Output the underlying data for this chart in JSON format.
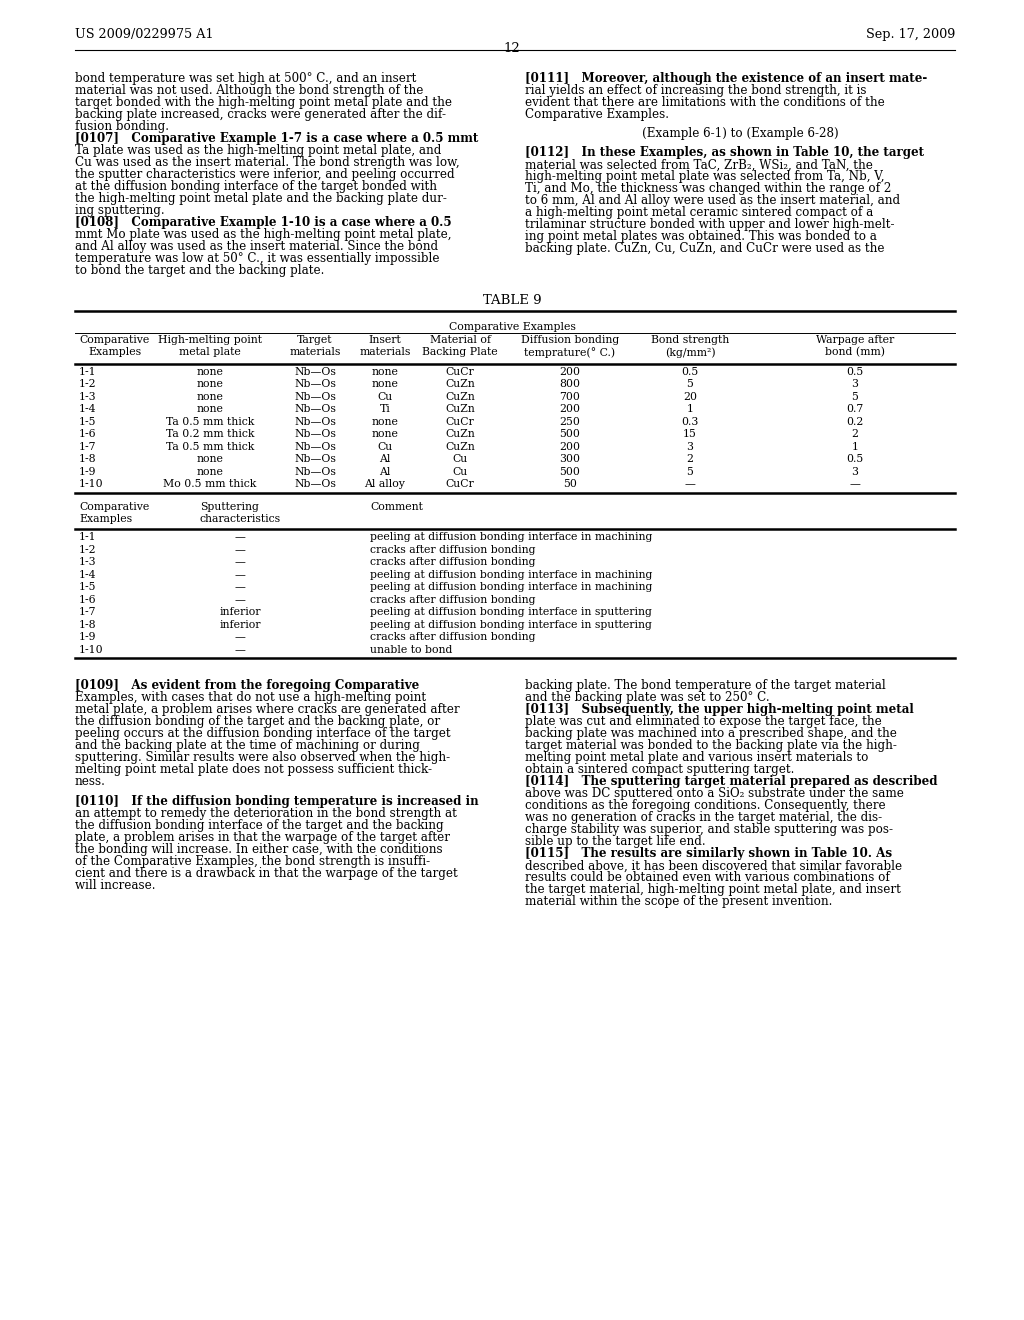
{
  "page_header_left": "US 2009/0229975 A1",
  "page_header_right": "Sep. 17, 2009",
  "page_number": "12",
  "background_color": "#ffffff",
  "left_col_top": [
    "bond temperature was set high at 500° C., and an insert",
    "material was not used. Although the bond strength of the",
    "target bonded with the high-melting point metal plate and the",
    "backing plate increased, cracks were generated after the dif-",
    "fusion bonding.",
    "[0107]   Comparative Example 1-7 is a case where a 0.5 mmt",
    "Ta plate was used as the high-melting point metal plate, and",
    "Cu was used as the insert material. The bond strength was low,",
    "the sputter characteristics were inferior, and peeling occurred",
    "at the diffusion bonding interface of the target bonded with",
    "the high-melting point metal plate and the backing plate dur-",
    "ing sputtering.",
    "[0108]   Comparative Example 1-10 is a case where a 0.5",
    "mmt Mo plate was used as the high-melting point metal plate,",
    "and Al alloy was used as the insert material. Since the bond",
    "temperature was low at 50° C., it was essentially impossible",
    "to bond the target and the backing plate."
  ],
  "left_col_top_bold": [
    false,
    false,
    false,
    false,
    false,
    true,
    false,
    false,
    false,
    false,
    false,
    false,
    true,
    false,
    false,
    false,
    false
  ],
  "right_col_top": [
    "[0111]   Moreover, although the existence of an insert mate-",
    "rial yields an effect of increasing the bond strength, it is",
    "evident that there are limitations with the conditions of the",
    "Comparative Examples.",
    "",
    "(Example 6-1) to (Example 6-28)",
    "",
    "[0112]   In these Examples, as shown in Table 10, the target",
    "material was selected from TaC, ZrB₂, WSi₂, and TaN, the",
    "high-melting point metal plate was selected from Ta, Nb, V,",
    "Ti, and Mo, the thickness was changed within the range of 2",
    "to 6 mm, Al and Al alloy were used as the insert material, and",
    "a high-melting point metal ceramic sintered compact of a",
    "trilaminar structure bonded with upper and lower high-melt-",
    "ing point metal plates was obtained. This was bonded to a",
    "backing plate. CuZn, Cu, CuZn, and CuCr were used as the"
  ],
  "right_col_top_bold": [
    true,
    false,
    false,
    false,
    false,
    false,
    false,
    true,
    false,
    false,
    false,
    false,
    false,
    false,
    false,
    false
  ],
  "right_col_top_center": [
    false,
    false,
    false,
    false,
    false,
    true,
    false,
    false,
    false,
    false,
    false,
    false,
    false,
    false,
    false,
    false
  ],
  "table_title": "TABLE 9",
  "table1_col_headers": [
    "Comparative\nExamples",
    "High-melting point\nmetal plate",
    "Target\nmaterials",
    "Insert\nmaterials",
    "Material of\nBacking Plate",
    "Diffusion bonding\ntemprature(° C.)",
    "Bond strength\n(kg/mm²)",
    "Warpage after\nbond (mm)"
  ],
  "table1_rows": [
    [
      "1-1",
      "none",
      "Nb—Os",
      "none",
      "CuCr",
      "200",
      "0.5",
      "0.5"
    ],
    [
      "1-2",
      "none",
      "Nb—Os",
      "none",
      "CuZn",
      "800",
      "5",
      "3"
    ],
    [
      "1-3",
      "none",
      "Nb—Os",
      "Cu",
      "CuZn",
      "700",
      "20",
      "5"
    ],
    [
      "1-4",
      "none",
      "Nb—Os",
      "Ti",
      "CuZn",
      "200",
      "1",
      "0.7"
    ],
    [
      "1-5",
      "Ta 0.5 mm thick",
      "Nb—Os",
      "none",
      "CuCr",
      "250",
      "0.3",
      "0.2"
    ],
    [
      "1-6",
      "Ta 0.2 mm thick",
      "Nb—Os",
      "none",
      "CuZn",
      "500",
      "15",
      "2"
    ],
    [
      "1-7",
      "Ta 0.5 mm thick",
      "Nb—Os",
      "Cu",
      "CuZn",
      "200",
      "3",
      "1"
    ],
    [
      "1-8",
      "none",
      "Nb—Os",
      "Al",
      "Cu",
      "300",
      "2",
      "0.5"
    ],
    [
      "1-9",
      "none",
      "Nb—Os",
      "Al",
      "Cu",
      "500",
      "5",
      "3"
    ],
    [
      "1-10",
      "Mo 0.5 mm thick",
      "Nb—Os",
      "Al alloy",
      "CuCr",
      "50",
      "—",
      "—"
    ]
  ],
  "table2_col_headers": [
    "Comparative\nExamples",
    "Sputtering\ncharacteristics",
    "Comment"
  ],
  "table2_rows": [
    [
      "1-1",
      "—",
      "peeling at diffusion bonding interface in machining"
    ],
    [
      "1-2",
      "—",
      "cracks after diffusion bonding"
    ],
    [
      "1-3",
      "—",
      "cracks after diffusion bonding"
    ],
    [
      "1-4",
      "—",
      "peeling at diffusion bonding interface in machining"
    ],
    [
      "1-5",
      "—",
      "peeling at diffusion bonding interface in machining"
    ],
    [
      "1-6",
      "—",
      "cracks after diffusion bonding"
    ],
    [
      "1-7",
      "inferior",
      "peeling at diffusion bonding interface in sputtering"
    ],
    [
      "1-8",
      "inferior",
      "peeling at diffusion bonding interface in sputtering"
    ],
    [
      "1-9",
      "—",
      "cracks after diffusion bonding"
    ],
    [
      "1-10",
      "—",
      "unable to bond"
    ]
  ],
  "bottom_left": [
    "[0109]   As evident from the foregoing Comparative",
    "Examples, with cases that do not use a high-melting point",
    "metal plate, a problem arises where cracks are generated after",
    "the diffusion bonding of the target and the backing plate, or",
    "peeling occurs at the diffusion bonding interface of the target",
    "and the backing plate at the time of machining or during",
    "sputtering. Similar results were also observed when the high-",
    "melting point metal plate does not possess sufficient thick-",
    "ness.",
    "",
    "[0110]   If the diffusion bonding temperature is increased in",
    "an attempt to remedy the deterioration in the bond strength at",
    "the diffusion bonding interface of the target and the backing",
    "plate, a problem arises in that the warpage of the target after",
    "the bonding will increase. In either case, with the conditions",
    "of the Comparative Examples, the bond strength is insuffi-",
    "cient and there is a drawback in that the warpage of the target",
    "will increase."
  ],
  "bottom_left_bold": [
    true,
    false,
    false,
    false,
    false,
    false,
    false,
    false,
    false,
    false,
    true,
    false,
    false,
    false,
    false,
    false,
    false,
    false
  ],
  "bottom_right": [
    "backing plate. The bond temperature of the target material",
    "and the backing plate was set to 250° C.",
    "[0113]   Subsequently, the upper high-melting point metal",
    "plate was cut and eliminated to expose the target face, the",
    "backing plate was machined into a prescribed shape, and the",
    "target material was bonded to the backing plate via the high-",
    "melting point metal plate and various insert materials to",
    "obtain a sintered compact sputtering target.",
    "[0114]   The sputtering target material prepared as described",
    "above was DC sputtered onto a SiO₂ substrate under the same",
    "conditions as the foregoing conditions. Consequently, there",
    "was no generation of cracks in the target material, the dis-",
    "charge stability was superior, and stable sputtering was pos-",
    "sible up to the target life end.",
    "[0115]   The results are similarly shown in Table 10. As",
    "described above, it has been discovered that similar favorable",
    "results could be obtained even with various combinations of",
    "the target material, high-melting point metal plate, and insert",
    "material within the scope of the present invention."
  ],
  "bottom_right_bold": [
    false,
    false,
    true,
    false,
    false,
    false,
    false,
    false,
    true,
    false,
    false,
    false,
    false,
    false,
    true,
    false,
    false,
    false,
    false
  ]
}
